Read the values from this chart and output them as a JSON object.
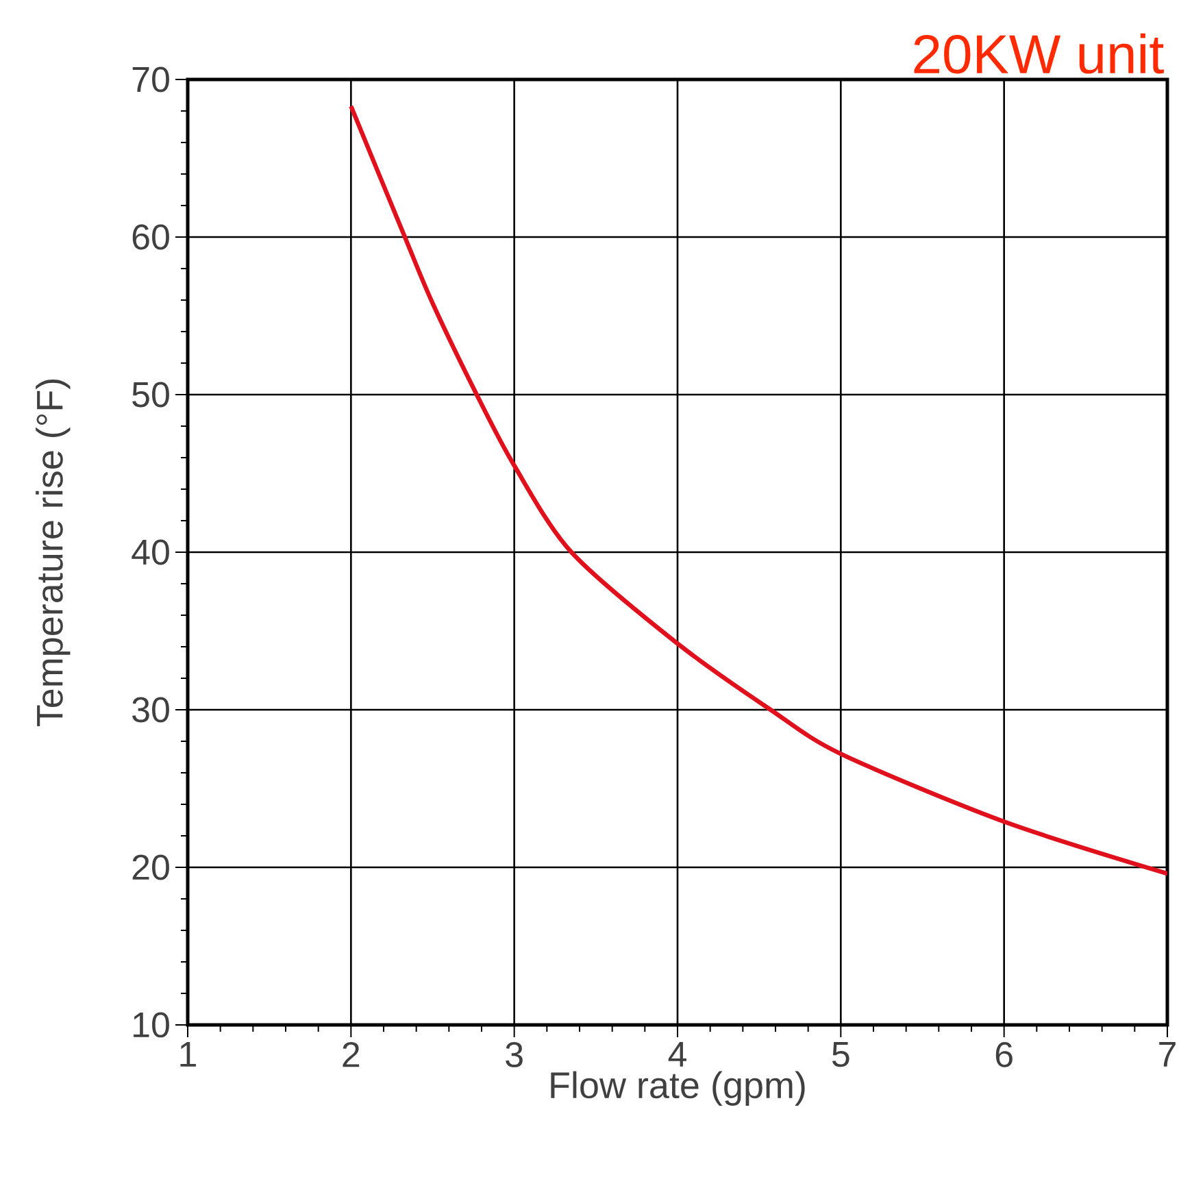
{
  "chart_data": {
    "type": "line",
    "title": "20KW unit",
    "xlabel": "Flow rate (gpm)",
    "ylabel": "Temperature rise (°F)",
    "x": [
      2,
      2.33,
      2.5,
      2.77,
      3,
      3.35,
      4,
      4.57,
      5,
      6,
      7
    ],
    "series": [
      {
        "color": "#e0101c",
        "values": [
          68.3,
          60,
          55.8,
          50,
          45.5,
          40,
          34.2,
          30,
          27.2,
          22.9,
          19.6
        ]
      }
    ],
    "xlim": [
      1,
      7
    ],
    "ylim": [
      10,
      70
    ],
    "xticks": [
      1,
      2,
      3,
      4,
      5,
      6,
      7
    ],
    "yticks": [
      10,
      20,
      30,
      40,
      50,
      60,
      70
    ],
    "grid": true,
    "marker": "none",
    "line_style": "solid"
  }
}
